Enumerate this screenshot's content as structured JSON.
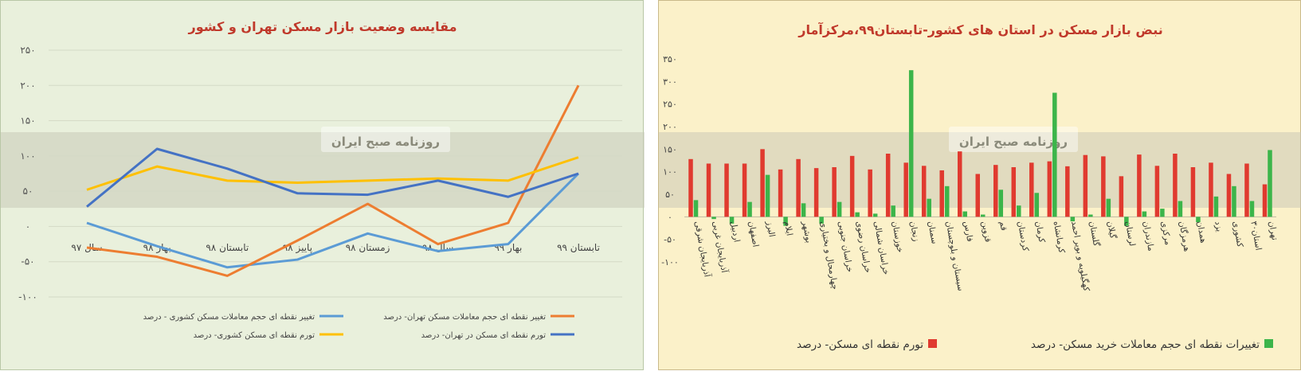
{
  "charts": [
    {
      "type": "line",
      "title": "مقایسه وضعیت بازار مسکن تهران و کشور",
      "watermark": "روزنامه صبح ایران",
      "categories": [
        "سال ۹۷",
        "بهار ۹۸",
        "تابستان ۹۸",
        "پاییز ۹۸",
        "زمستان ۹۸",
        "سال ۹۸",
        "بهار ۹۹",
        "تابستان ۹۹"
      ],
      "ylim": [
        -100,
        250
      ],
      "yticks": [
        -100,
        -50,
        0,
        50,
        100,
        150,
        200,
        250
      ],
      "ytick_labels": [
        "-۱۰۰",
        "-۵۰",
        "۰",
        "۵۰",
        "۱۰۰",
        "۱۵۰",
        "۲۰۰",
        "۲۵۰"
      ],
      "grid": true,
      "legend_position": "bottom",
      "series": [
        {
          "name": "تغییر نقطه ای حجم معاملات مسکن کشوری - درصد",
          "color": "#5b9bd5",
          "values": [
            5,
            -28,
            -58,
            -47,
            -10,
            -35,
            -25,
            75
          ]
        },
        {
          "name": "تغییر نقطه ای حجم معاملات مسکن تهران- درصد",
          "color": "#ed7d31",
          "values": [
            -30,
            -43,
            -70,
            -20,
            32,
            -25,
            5,
            200
          ]
        },
        {
          "name": "تورم نقطه ای مسکن کشوری- درصد",
          "color": "#ffc000",
          "values": [
            52,
            85,
            65,
            62,
            65,
            68,
            65,
            98
          ]
        },
        {
          "name": "تورم نقطه ای مسکن در تهران- درصد",
          "color": "#4472c4",
          "values": [
            28,
            110,
            82,
            47,
            45,
            65,
            42,
            75
          ]
        }
      ]
    },
    {
      "type": "bar",
      "title": "نبض بازار مسکن در استان های کشور-تابستان۹۹،مرکزآمار",
      "watermark": "روزنامه صبح ایران",
      "categories": [
        "آذربایجان شرقی",
        "آذربایجان غربی",
        "اردبیل",
        "اصفهان",
        "البرز",
        "ایلام",
        "بوشهر",
        "چهارمحال و بختیاری",
        "خراسان جنوبی",
        "خراسان رضوی",
        "خراسان شمالی",
        "خوزستان",
        "زنجان",
        "سمنان",
        "سیستان و بلوچستان",
        "فارس",
        "قزوین",
        "قم",
        "کردستان",
        "کرمان",
        "کرمانشاه",
        "کهگیلویه و بویر احمد",
        "گلستان",
        "گیلان",
        "لرستان",
        "مازندران",
        "مرکزی",
        "هرمزگان",
        "همدان",
        "یزد",
        "کشوری",
        "۳۰استان",
        "تهران"
      ],
      "ylim": [
        -100,
        350
      ],
      "yticks": [
        -100,
        -50,
        0,
        50,
        100,
        150,
        200,
        250,
        300,
        350
      ],
      "ytick_labels": [
        "-۱۰۰",
        "-۵۰",
        "۰",
        "۵۰",
        "۱۰۰",
        "۱۵۰",
        "۲۰۰",
        "۲۵۰",
        "۳۰۰",
        "۳۵۰"
      ],
      "grid": false,
      "legend_position": "bottom",
      "series": [
        {
          "name": "تورم نقطه ای مسکن- درصد",
          "color": "#e03a2f",
          "values": [
            128,
            118,
            118,
            118,
            150,
            105,
            128,
            108,
            110,
            135,
            105,
            140,
            120,
            113,
            103,
            145,
            95,
            115,
            110,
            120,
            123,
            112,
            137,
            134,
            90,
            138,
            113,
            140,
            110,
            120,
            95,
            118,
            72
          ]
        },
        {
          "name": "تغییرات نقطه ای حجم معاملات خرید مسکن- درصد",
          "color": "#3cb54a",
          "values": [
            37,
            -5,
            -15,
            33,
            93,
            -20,
            30,
            -15,
            33,
            10,
            7,
            25,
            325,
            40,
            68,
            12,
            5,
            60,
            25,
            53,
            275,
            -10,
            5,
            40,
            -20,
            12,
            18,
            35,
            -12,
            45,
            68,
            35,
            148
          ]
        }
      ]
    }
  ]
}
